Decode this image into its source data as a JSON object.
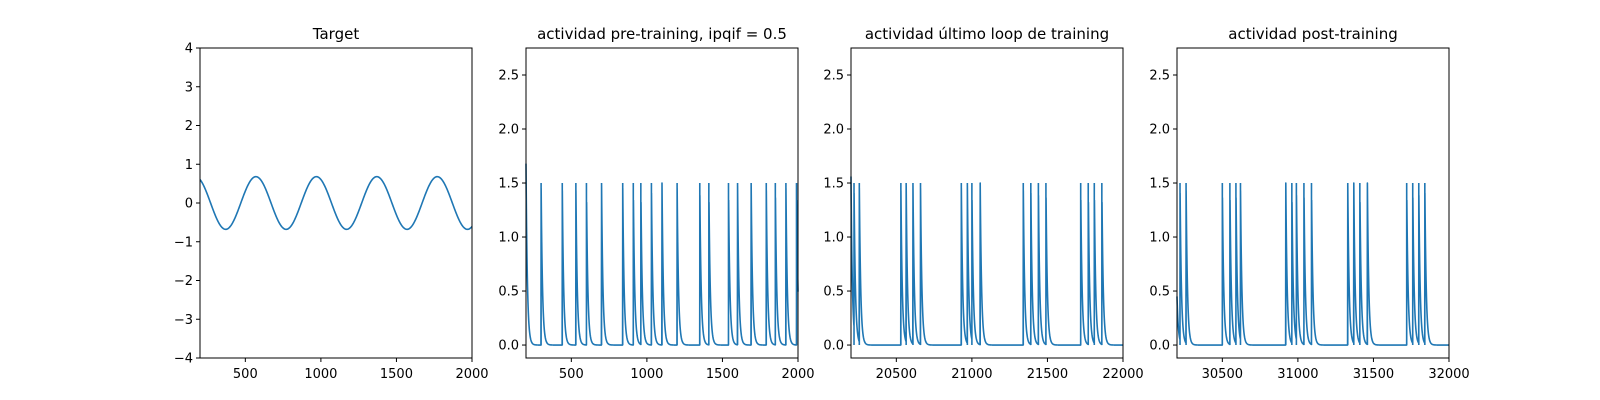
{
  "chart_data": [
    {
      "type": "line",
      "title": "Target",
      "xlim": [
        200,
        2000
      ],
      "ylim": [
        -4,
        4
      ],
      "xticks": [
        500,
        1000,
        1500,
        2000
      ],
      "yticks": [
        -4,
        -3,
        -2,
        -1,
        0,
        1,
        2,
        3,
        4
      ],
      "xtick_labels": [
        "500",
        "1000",
        "1500",
        "2000"
      ],
      "ytick_labels": [
        "−4",
        "−3",
        "−2",
        "−1",
        "0",
        "1",
        "2",
        "3",
        "4"
      ],
      "series": [
        {
          "kind": "sine",
          "amplitude": 0.68,
          "period": 400,
          "peak_x": 570
        }
      ]
    },
    {
      "type": "line",
      "title": "actividad pre-training, ipqif = 0.5",
      "xlim": [
        200,
        2000
      ],
      "ylim": [
        -0.12,
        2.75
      ],
      "xticks": [
        500,
        1000,
        1500,
        2000
      ],
      "yticks": [
        0.0,
        0.5,
        1.0,
        1.5,
        2.0,
        2.5
      ],
      "xtick_labels": [
        "500",
        "1000",
        "1500",
        "2000"
      ],
      "ytick_labels": [
        "0.0",
        "0.5",
        "1.0",
        "1.5",
        "2.0",
        "2.5"
      ],
      "series": [
        {
          "kind": "spikes",
          "initial": 1.68,
          "peak": 1.5,
          "times": [
            300,
            440,
            530,
            600,
            700,
            840,
            910,
            960,
            1030,
            1100,
            1200,
            1350,
            1410,
            1540,
            1600,
            1690,
            1790,
            1850,
            1920,
            1990
          ]
        }
      ]
    },
    {
      "type": "line",
      "title": "actividad último loop de training",
      "xlim": [
        20200,
        22000
      ],
      "ylim": [
        -0.12,
        2.75
      ],
      "xticks": [
        20500,
        21000,
        21500,
        22000
      ],
      "yticks": [
        0.0,
        0.5,
        1.0,
        1.5,
        2.0,
        2.5
      ],
      "xtick_labels": [
        "20500",
        "21000",
        "21500",
        "22000"
      ],
      "ytick_labels": [
        "0.0",
        "0.5",
        "1.0",
        "1.5",
        "2.0",
        "2.5"
      ],
      "series": [
        {
          "kind": "spikes",
          "initial": 1.56,
          "peak": 1.5,
          "times": [
            20220,
            20255,
            20530,
            20565,
            20610,
            20660,
            20930,
            20970,
            21000,
            21055,
            21340,
            21390,
            21440,
            21490,
            21720,
            21770,
            21810,
            21860
          ]
        }
      ]
    },
    {
      "type": "line",
      "title": "actividad post-training",
      "xlim": [
        30200,
        32000
      ],
      "ylim": [
        -0.12,
        2.75
      ],
      "xticks": [
        30500,
        31000,
        31500,
        32000
      ],
      "yticks": [
        0.0,
        0.5,
        1.0,
        1.5,
        2.0,
        2.5
      ],
      "xtick_labels": [
        "30500",
        "31000",
        "31500",
        "32000"
      ],
      "ytick_labels": [
        "0.0",
        "0.5",
        "1.0",
        "1.5",
        "2.0",
        "2.5"
      ],
      "series": [
        {
          "kind": "spikes",
          "initial": 0.45,
          "peak": 1.5,
          "times": [
            30220,
            30260,
            30500,
            30550,
            30590,
            30620,
            30920,
            30960,
            30990,
            31040,
            31090,
            31330,
            31370,
            31410,
            31460,
            31720,
            31760,
            31800,
            31840
          ]
        }
      ]
    }
  ]
}
